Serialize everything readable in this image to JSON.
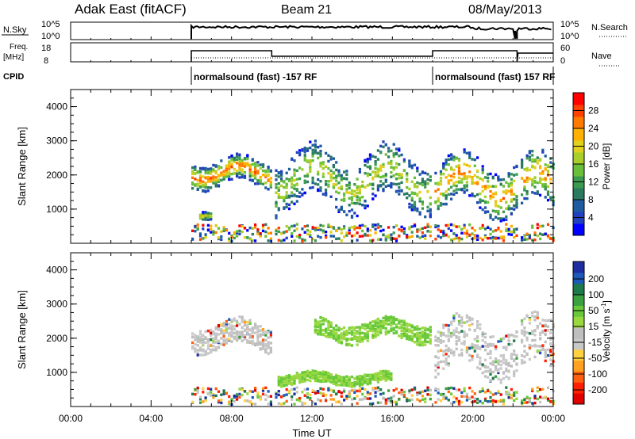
{
  "header": {
    "site": "Adak East (fitACF)",
    "beam": "Beam 21",
    "date": "08/May/2013"
  },
  "panel_labels": {
    "nsky": "N.Sky",
    "nsky_top": "10^5",
    "nsky_bottom": "10^0",
    "freq_top_label": "Freq.",
    "freq_bottom_label": "[MHz]",
    "freq_top": "18",
    "freq_bottom": "8",
    "cpid": "CPID",
    "nsearch": "N.Search",
    "nsearch_top": "10^5",
    "nsearch_bottom": "10^0",
    "nave": "Nave",
    "nave_top": "60",
    "nave_bottom": "0"
  },
  "cpid_segments": [
    {
      "label": "normalsound (fast) -157 RF",
      "start_hour": 6
    },
    {
      "label": "normalsound (fast) 157 RF",
      "start_hour": 18
    }
  ],
  "axes": {
    "ylabel": "Slant Range [km]",
    "xlabel": "Time UT",
    "xticks": [
      "00:00",
      "04:00",
      "08:00",
      "12:00",
      "16:00",
      "20:00",
      "00:00"
    ],
    "yticks": [
      "1000",
      "2000",
      "3000",
      "4000"
    ]
  },
  "colorbars": {
    "power": {
      "label": "Power [dB]",
      "ticks": [
        "4",
        "8",
        "12",
        "16",
        "20",
        "24",
        "28"
      ],
      "colors": [
        "#0000ff",
        "#2040c0",
        "#1f5ba0",
        "#2a7a60",
        "#3c9a50",
        "#6abf3a",
        "#a8cf2a",
        "#e0d020",
        "#ffb000",
        "#ff7a00",
        "#ff4000",
        "#ff0000"
      ]
    },
    "velocity": {
      "label_parts": [
        "Velocity [m s",
        "-1",
        "]"
      ],
      "ticks": [
        "200",
        "100",
        "50",
        "15",
        "-15",
        "-50",
        "-100",
        "-200"
      ],
      "colors": [
        "#1c2ea0",
        "#1e58b8",
        "#1e7a4a",
        "#3aa040",
        "#66c83a",
        "#9ad840",
        "#bfbfbf",
        "#c8c8c8",
        "#ffd040",
        "#ffa020",
        "#ff6010",
        "#ff2000",
        "#e00000"
      ]
    }
  },
  "chart_data": [
    {
      "type": "heatmap",
      "title": "Power",
      "x": "Time UT (hours)",
      "xlim": [
        0,
        24
      ],
      "ylim": [
        0,
        4500
      ],
      "colorbar": "Power [dB]",
      "data_start_hour": 6,
      "data_gaps_hours": [
        10,
        18,
        22.2
      ],
      "scatter_regions": [
        {
          "start": 6,
          "end": 10,
          "range_km": [
            1500,
            2700
          ],
          "peak_db": 28
        },
        {
          "start": 6.3,
          "end": 7,
          "range_km": [
            700,
            1100
          ],
          "peak_db": 22
        },
        {
          "start": 10,
          "end": 18,
          "range_km": [
            700,
            3100
          ],
          "peak_db": 18
        },
        {
          "start": 18,
          "end": 24,
          "range_km": [
            600,
            2900
          ],
          "peak_db": 26
        }
      ]
    },
    {
      "type": "heatmap",
      "title": "Velocity",
      "x": "Time UT (hours)",
      "xlim": [
        0,
        24
      ],
      "ylim": [
        0,
        4500
      ],
      "colorbar": "Velocity [m s-1]",
      "data_start_hour": 6,
      "data_gaps_hours": [
        10,
        18,
        22.2
      ],
      "scatter_regions": [
        {
          "start": 6,
          "end": 10,
          "range_km": [
            1500,
            2700
          ],
          "velocity": 0
        },
        {
          "start": 10.2,
          "end": 16,
          "range_km": [
            600,
            1100
          ],
          "velocity": 40
        },
        {
          "start": 12,
          "end": 18,
          "range_km": [
            1800,
            2700
          ],
          "velocity": 30
        },
        {
          "start": 18,
          "end": 24,
          "range_km": [
            600,
            2900
          ],
          "velocity": 0
        }
      ]
    }
  ]
}
